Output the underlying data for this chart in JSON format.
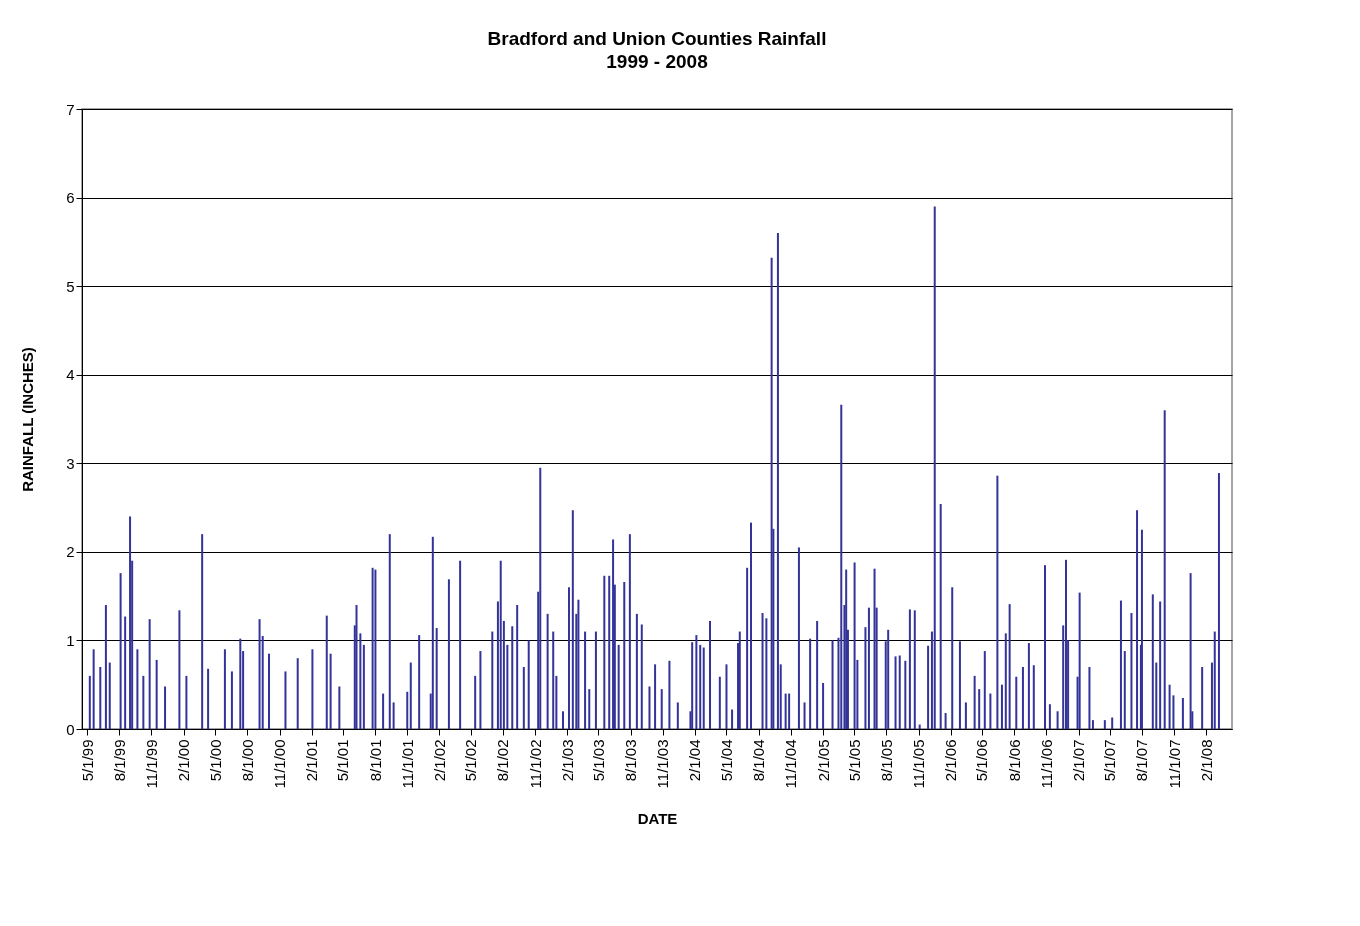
{
  "chart_data": {
    "type": "bar",
    "title": "Bradford and Union Counties Rainfall",
    "subtitle": "1999 - 2008",
    "xlabel": "DATE",
    "ylabel": "RAINFALL (INCHES)",
    "x": [
      "1999-05-09",
      "1999-05-20",
      "1999-06-08",
      "1999-06-24",
      "1999-07-05",
      "1999-08-05",
      "1999-08-18",
      "1999-09-01",
      "1999-09-07",
      "1999-09-22",
      "1999-10-09",
      "1999-10-27",
      "1999-11-16",
      "1999-12-10",
      "2000-01-20",
      "2000-02-09",
      "2000-03-25",
      "2000-04-11",
      "2000-05-29",
      "2000-06-18",
      "2000-07-12",
      "2000-07-20",
      "2000-09-05",
      "2000-09-14",
      "2000-10-02",
      "2000-11-18",
      "2000-12-23",
      "2001-02-03",
      "2001-03-16",
      "2001-03-27",
      "2001-04-21",
      "2001-06-04",
      "2001-06-09",
      "2001-06-20",
      "2001-06-30",
      "2001-07-25",
      "2001-08-02",
      "2001-08-24",
      "2001-09-12",
      "2001-09-23",
      "2001-11-01",
      "2001-11-11",
      "2001-12-05",
      "2002-01-07",
      "2002-01-13",
      "2002-01-24",
      "2002-02-28",
      "2002-04-01",
      "2002-05-14",
      "2002-05-29",
      "2002-07-02",
      "2002-07-18",
      "2002-07-26",
      "2002-08-04",
      "2002-08-14",
      "2002-08-28",
      "2002-09-11",
      "2002-09-30",
      "2002-10-14",
      "2002-11-10",
      "2002-11-16",
      "2002-12-07",
      "2002-12-23",
      "2003-01-01",
      "2003-01-20",
      "2003-02-06",
      "2003-02-17",
      "2003-02-27",
      "2003-03-05",
      "2003-03-24",
      "2003-04-05",
      "2003-04-24",
      "2003-05-18",
      "2003-06-01",
      "2003-06-12",
      "2003-06-17",
      "2003-06-28",
      "2003-07-14",
      "2003-07-30",
      "2003-08-19",
      "2003-09-02",
      "2003-09-24",
      "2003-10-10",
      "2003-10-29",
      "2003-11-20",
      "2003-12-14",
      "2004-01-19",
      "2004-01-24",
      "2004-02-05",
      "2004-02-16",
      "2004-02-26",
      "2004-03-15",
      "2004-04-12",
      "2004-05-01",
      "2004-05-17",
      "2004-06-03",
      "2004-06-08",
      "2004-06-29",
      "2004-07-10",
      "2004-08-12",
      "2004-08-23",
      "2004-09-07",
      "2004-09-12",
      "2004-09-25",
      "2004-10-03",
      "2004-10-17",
      "2004-10-27",
      "2004-11-24",
      "2004-12-10",
      "2004-12-26",
      "2005-01-15",
      "2005-02-01",
      "2005-02-28",
      "2005-03-17",
      "2005-03-25",
      "2005-04-03",
      "2005-04-08",
      "2005-04-13",
      "2005-05-02",
      "2005-05-10",
      "2005-06-02",
      "2005-06-12",
      "2005-06-28",
      "2005-07-04",
      "2005-07-30",
      "2005-08-06",
      "2005-08-27",
      "2005-09-08",
      "2005-09-24",
      "2005-10-07",
      "2005-10-21",
      "2005-11-04",
      "2005-11-28",
      "2005-12-09",
      "2005-12-17",
      "2006-01-03",
      "2006-01-17",
      "2006-02-05",
      "2006-02-27",
      "2006-03-16",
      "2006-04-10",
      "2006-04-23",
      "2006-05-09",
      "2006-05-25",
      "2006-06-14",
      "2006-06-27",
      "2006-07-08",
      "2006-07-19",
      "2006-08-07",
      "2006-08-26",
      "2006-09-12",
      "2006-09-26",
      "2006-10-28",
      "2006-11-11",
      "2006-12-03",
      "2006-12-19",
      "2006-12-27",
      "2007-01-02",
      "2007-01-29",
      "2007-02-04",
      "2007-03-04",
      "2007-03-14",
      "2007-04-17",
      "2007-05-08",
      "2007-06-02",
      "2007-06-13",
      "2007-07-02",
      "2007-07-18",
      "2007-07-29",
      "2007-08-01",
      "2007-09-01",
      "2007-09-11",
      "2007-09-22",
      "2007-10-05",
      "2007-10-19",
      "2007-10-30",
      "2007-11-26",
      "2007-12-18",
      "2007-12-23",
      "2008-01-20",
      "2008-02-17",
      "2008-02-25",
      "2008-03-08"
    ],
    "values": [
      0.6,
      0.9,
      0.7,
      1.4,
      0.75,
      1.76,
      1.27,
      2.4,
      1.9,
      0.9,
      0.6,
      1.24,
      0.78,
      0.48,
      1.34,
      0.6,
      2.2,
      0.68,
      0.9,
      0.65,
      1.02,
      0.88,
      1.24,
      1.05,
      0.85,
      0.65,
      0.8,
      0.9,
      1.28,
      0.85,
      0.48,
      1.17,
      1.4,
      1.08,
      0.95,
      1.82,
      1.8,
      0.4,
      2.2,
      0.3,
      0.42,
      0.75,
      1.06,
      0.4,
      2.17,
      1.14,
      1.69,
      1.9,
      0.6,
      0.88,
      1.1,
      1.44,
      1.9,
      1.22,
      0.95,
      1.16,
      1.4,
      0.7,
      1.0,
      1.55,
      2.95,
      1.3,
      1.1,
      0.6,
      0.2,
      1.6,
      2.47,
      1.3,
      1.46,
      1.1,
      0.45,
      1.1,
      1.73,
      1.73,
      2.14,
      1.63,
      0.95,
      1.66,
      2.2,
      1.3,
      1.18,
      0.48,
      0.73,
      0.45,
      0.77,
      0.3,
      0.2,
      0.98,
      1.06,
      0.95,
      0.92,
      1.22,
      0.59,
      0.73,
      0.22,
      0.97,
      1.1,
      1.82,
      2.33,
      1.31,
      1.25,
      5.32,
      2.26,
      5.6,
      0.73,
      0.4,
      0.4,
      2.05,
      0.3,
      1.02,
      1.22,
      0.52,
      1.0,
      1.03,
      3.66,
      1.4,
      1.8,
      1.12,
      1.88,
      0.78,
      1.15,
      1.37,
      1.81,
      1.37,
      0.99,
      1.12,
      0.82,
      0.83,
      0.77,
      1.35,
      1.34,
      0.05,
      0.94,
      1.1,
      5.9,
      2.54,
      0.18,
      1.6,
      0.99,
      0.3,
      0.6,
      0.45,
      0.88,
      0.4,
      2.86,
      0.5,
      1.08,
      1.41,
      0.59,
      0.7,
      0.97,
      0.72,
      1.85,
      0.28,
      0.2,
      1.17,
      1.91,
      1.0,
      0.59,
      1.54,
      0.7,
      0.1,
      0.1,
      0.13,
      1.45,
      0.88,
      1.31,
      2.47,
      0.95,
      2.25,
      1.52,
      0.75,
      1.44,
      3.6,
      0.5,
      0.38,
      0.35,
      1.76,
      0.2,
      0.7,
      0.75,
      1.1,
      2.89
    ],
    "color": "#333399",
    "ylim": [
      0,
      7
    ],
    "yticks": [
      0,
      1,
      2,
      3,
      4,
      5,
      6,
      7
    ],
    "xlim": [
      "1999-05-01",
      "2008-03-31"
    ],
    "xticks": [
      {
        "value": "1999-05-01",
        "label": "5/1/99"
      },
      {
        "value": "1999-08-01",
        "label": "8/1/99"
      },
      {
        "value": "1999-11-01",
        "label": "11/1/99"
      },
      {
        "value": "2000-02-01",
        "label": "2/1/00"
      },
      {
        "value": "2000-05-01",
        "label": "5/1/00"
      },
      {
        "value": "2000-08-01",
        "label": "8/1/00"
      },
      {
        "value": "2000-11-01",
        "label": "11/1/00"
      },
      {
        "value": "2001-02-01",
        "label": "2/1/01"
      },
      {
        "value": "2001-05-01",
        "label": "5/1/01"
      },
      {
        "value": "2001-08-01",
        "label": "8/1/01"
      },
      {
        "value": "2001-11-01",
        "label": "11/1/01"
      },
      {
        "value": "2002-02-01",
        "label": "2/1/02"
      },
      {
        "value": "2002-05-01",
        "label": "5/1/02"
      },
      {
        "value": "2002-08-01",
        "label": "8/1/02"
      },
      {
        "value": "2002-11-01",
        "label": "11/1/02"
      },
      {
        "value": "2003-02-01",
        "label": "2/1/03"
      },
      {
        "value": "2003-05-01",
        "label": "5/1/03"
      },
      {
        "value": "2003-08-01",
        "label": "8/1/03"
      },
      {
        "value": "2003-11-01",
        "label": "11/1/03"
      },
      {
        "value": "2004-02-01",
        "label": "2/1/04"
      },
      {
        "value": "2004-05-01",
        "label": "5/1/04"
      },
      {
        "value": "2004-08-01",
        "label": "8/1/04"
      },
      {
        "value": "2004-11-01",
        "label": "11/1/04"
      },
      {
        "value": "2005-02-01",
        "label": "2/1/05"
      },
      {
        "value": "2005-05-01",
        "label": "5/1/05"
      },
      {
        "value": "2005-08-01",
        "label": "8/1/05"
      },
      {
        "value": "2005-11-01",
        "label": "11/1/05"
      },
      {
        "value": "2006-02-01",
        "label": "2/1/06"
      },
      {
        "value": "2006-05-01",
        "label": "5/1/06"
      },
      {
        "value": "2006-08-01",
        "label": "8/1/06"
      },
      {
        "value": "2006-11-01",
        "label": "11/1/06"
      },
      {
        "value": "2007-02-01",
        "label": "2/1/07"
      },
      {
        "value": "2007-05-01",
        "label": "5/1/07"
      },
      {
        "value": "2007-08-01",
        "label": "8/1/07"
      },
      {
        "value": "2007-11-01",
        "label": "11/1/07"
      },
      {
        "value": "2008-02-01",
        "label": "2/1/08"
      }
    ],
    "grid": "y"
  }
}
